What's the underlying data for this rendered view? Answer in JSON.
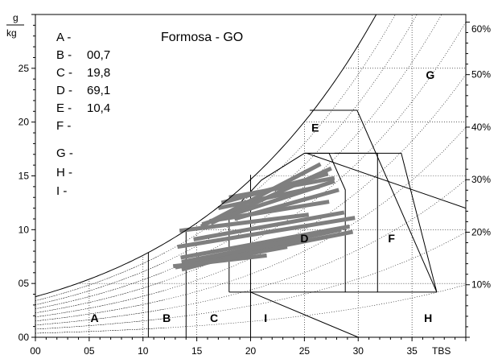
{
  "chart_data": {
    "type": "psychrometric",
    "title": "Formosa - GO",
    "unit_label_top": "g",
    "unit_label_bottom": "kg",
    "x_axis_label": "TBS",
    "xlim": [
      0,
      40
    ],
    "ylim": [
      0,
      30
    ],
    "x_ticks": [
      "00",
      "05",
      "10",
      "15",
      "20",
      "25",
      "30",
      "35"
    ],
    "x_tick_values": [
      0,
      5,
      10,
      15,
      20,
      25,
      30,
      35
    ],
    "y_ticks": [
      "00",
      "05",
      "10",
      "15",
      "20",
      "25"
    ],
    "y_tick_values": [
      0,
      5,
      10,
      15,
      20,
      25
    ],
    "rh_labels": [
      "10%",
      "20%",
      "30%",
      "40%",
      "50%",
      "60%"
    ],
    "rh_label_values": [
      10,
      20,
      30,
      40,
      50,
      60
    ],
    "legend": [
      {
        "key": "A -",
        "value": ""
      },
      {
        "key": "B -",
        "value": "00,7"
      },
      {
        "key": "C -",
        "value": "19,8"
      },
      {
        "key": "D -",
        "value": "69,1"
      },
      {
        "key": "E -",
        "value": "10,4"
      },
      {
        "key": "F -",
        "value": ""
      },
      {
        "key": "G -",
        "value": ""
      },
      {
        "key": "H -",
        "value": ""
      },
      {
        "key": "I -",
        "value": ""
      }
    ],
    "zones": [
      {
        "label": "A",
        "x": 5.5,
        "y": 1.8
      },
      {
        "label": "B",
        "x": 12.2,
        "y": 1.8
      },
      {
        "label": "C",
        "x": 16.6,
        "y": 1.8
      },
      {
        "label": "D",
        "x": 25.0,
        "y": 9.2
      },
      {
        "label": "E",
        "x": 26.0,
        "y": 19.5
      },
      {
        "label": "F",
        "x": 33.1,
        "y": 9.2
      },
      {
        "label": "G",
        "x": 36.7,
        "y": 24.4
      },
      {
        "label": "H",
        "x": 36.5,
        "y": 1.8
      },
      {
        "label": "I",
        "x": 21.4,
        "y": 1.8
      }
    ],
    "climate_bars": [
      {
        "x1": 17.3,
        "y1": 12.5,
        "x2": 27.2,
        "y2": 15.2
      },
      {
        "x1": 18.0,
        "y1": 13.0,
        "x2": 27.8,
        "y2": 14.8
      },
      {
        "x1": 17.0,
        "y1": 12.0,
        "x2": 26.4,
        "y2": 14.0
      },
      {
        "x1": 18.5,
        "y1": 11.0,
        "x2": 28.2,
        "y2": 13.7
      },
      {
        "x1": 16.3,
        "y1": 10.6,
        "x2": 27.5,
        "y2": 15.7
      },
      {
        "x1": 15.4,
        "y1": 10.3,
        "x2": 26.5,
        "y2": 16.1
      },
      {
        "x1": 15.5,
        "y1": 10.5,
        "x2": 27.8,
        "y2": 14.5
      },
      {
        "x1": 16.2,
        "y1": 10.8,
        "x2": 27.3,
        "y2": 12.6
      },
      {
        "x1": 13.4,
        "y1": 9.9,
        "x2": 25.4,
        "y2": 11.4
      },
      {
        "x1": 14.7,
        "y1": 9.1,
        "x2": 28.7,
        "y2": 11.6
      },
      {
        "x1": 13.2,
        "y1": 8.4,
        "x2": 29.7,
        "y2": 11.1
      },
      {
        "x1": 13.5,
        "y1": 7.4,
        "x2": 29.2,
        "y2": 10.3
      },
      {
        "x1": 14.3,
        "y1": 6.8,
        "x2": 29.5,
        "y2": 9.8
      },
      {
        "x1": 13.6,
        "y1": 6.9,
        "x2": 28.4,
        "y2": 10.0
      },
      {
        "x1": 13.6,
        "y1": 6.3,
        "x2": 26.6,
        "y2": 9.7
      },
      {
        "x1": 13.0,
        "y1": 6.5,
        "x2": 23.4,
        "y2": 8.4
      },
      {
        "x1": 12.8,
        "y1": 6.6,
        "x2": 21.5,
        "y2": 7.6
      },
      {
        "x1": 13.6,
        "y1": 7.0,
        "x2": 24.5,
        "y2": 9.1
      }
    ],
    "grid": true
  }
}
